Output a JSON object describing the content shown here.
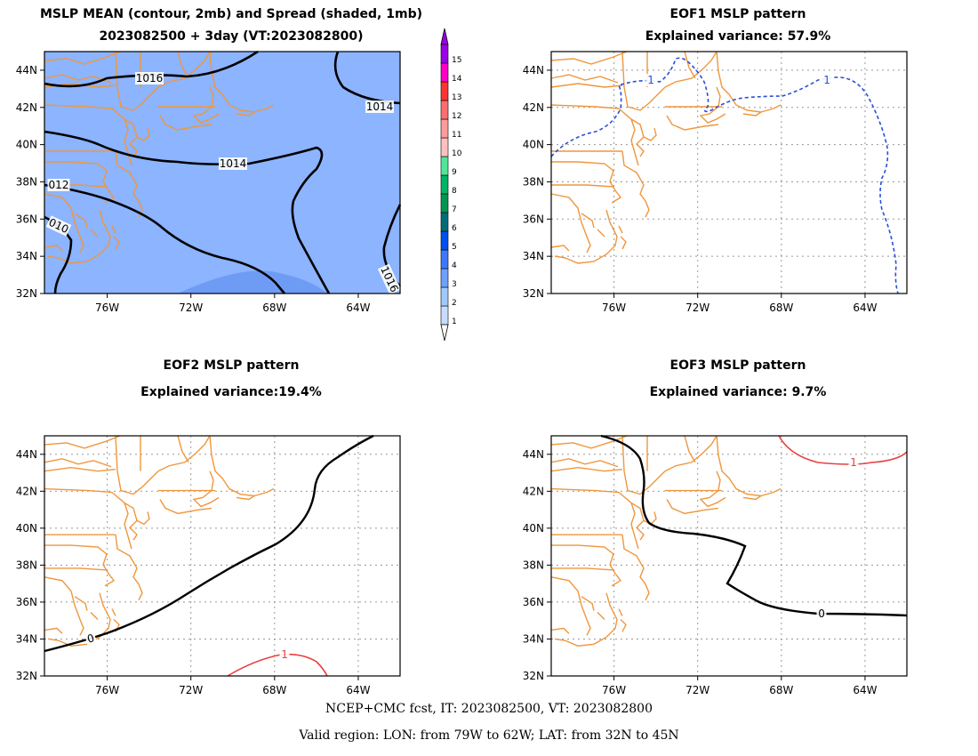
{
  "panels": [
    {
      "title_line1": "MSLP MEAN (contour, 2mb) and Spread (shaded, 1mb)",
      "title_line2": "2023082500 + 3day (VT:2023082800)",
      "contour_labels": [
        "1016",
        "1014",
        "1014",
        "012",
        "010",
        "1016"
      ]
    },
    {
      "title_line1": "EOF1 MSLP pattern",
      "title_line2": "Explained variance: 57.9%",
      "contour_labels": [
        "1",
        "1"
      ]
    },
    {
      "title_line1": "EOF2 MSLP pattern",
      "title_line2": "Explained variance:19.4%",
      "contour_labels": [
        "0",
        "1"
      ]
    },
    {
      "title_line1": "EOF3 MSLP pattern",
      "title_line2": "Explained variance: 9.7%",
      "contour_labels": [
        "1",
        "0"
      ]
    }
  ],
  "axes": {
    "lat_ticks": [
      "44N",
      "42N",
      "40N",
      "38N",
      "36N",
      "34N",
      "32N"
    ],
    "lon_ticks": [
      "76W",
      "72W",
      "68W",
      "64W"
    ],
    "lat_range": [
      32,
      45
    ],
    "lon_range": [
      -79,
      -62
    ]
  },
  "colorbar": {
    "labels": [
      "1",
      "2",
      "3",
      "4",
      "5",
      "6",
      "7",
      "8",
      "9",
      "10",
      "11",
      "12",
      "13",
      "14",
      "15"
    ],
    "colors": [
      "#c8dcff",
      "#a0c8ff",
      "#6ea0ff",
      "#3c78ff",
      "#0050f0",
      "#006e7a",
      "#009650",
      "#00b464",
      "#50e696",
      "#ffc0c0",
      "#ff9a9a",
      "#ff6e6e",
      "#ff3232",
      "#ff00c8",
      "#9a00e6"
    ]
  },
  "footer": {
    "line1": "NCEP+CMC fcst, IT: 2023082500, VT: 2023082800",
    "line2": "Valid region: LON: from 79W to 62W; LAT: from 32N to 45N"
  },
  "colors": {
    "coast": "#f0963c",
    "spread_fill": "#8cb4ff",
    "spread_high": "#6e9cf5",
    "eof_positive": "#e84040",
    "eof1_line": "#2a4fd8",
    "contour": "#000000"
  }
}
